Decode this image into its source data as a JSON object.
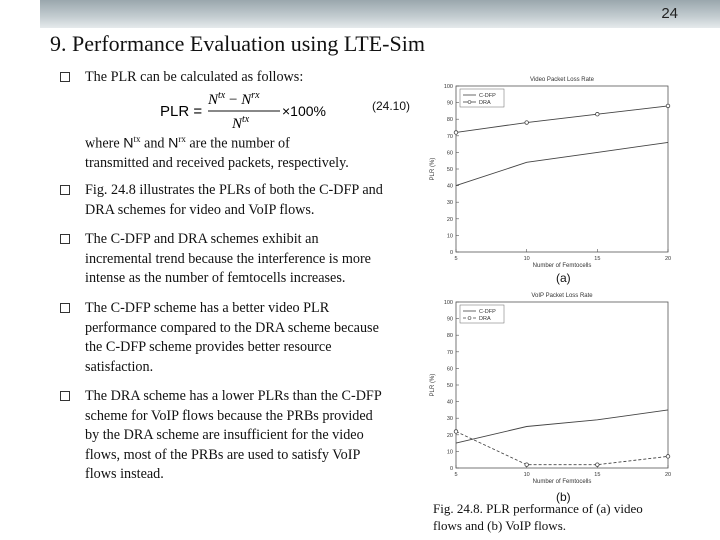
{
  "slide_number": "24",
  "title": "9. Performance Evaluation using LTE-Sim",
  "formula": {
    "lhs": "PLR =",
    "num_base1": "N",
    "num_sup1": "tx",
    "num_minus": " − ",
    "num_base2": "N",
    "num_sup2": "rx",
    "den_base": "N",
    "den_sup": "tx",
    "factor": "×100%",
    "tag": "(24.10)"
  },
  "bullets": [
    {
      "lines": [
        "The PLR can be calculated as follows:"
      ]
    },
    {
      "lines": [
        "Fig. 24.8 illustrates the PLRs of both the C-DFP and",
        "DRA schemes for video and VoIP flows."
      ]
    },
    {
      "lines": [
        "The C-DFP and DRA schemes exhibit an",
        "incremental trend because the interference is more",
        "intense as the number of femtocells increases."
      ]
    },
    {
      "lines": [
        "The C-DFP scheme has a better video PLR",
        "performance compared to the DRA scheme because",
        "the C-DFP scheme provides better resource",
        "satisfaction."
      ]
    },
    {
      "lines": [
        "The DRA scheme has a lower PLRs than the C-DFP",
        "scheme for VoIP flows because the PRBs provided",
        "by the DRA scheme are insufficient for the video",
        "flows, most of the PRBs are used to satisfy VoIP",
        "flows instead."
      ]
    }
  ],
  "where_text": {
    "w1": "where ",
    "n1": "N",
    "s1": "tx",
    "w2": " and ",
    "n2": "N",
    "s2": "rx",
    "w3": " are the number of",
    "line2": "transmitted and received packets, respectively."
  },
  "caption": {
    "line1": "Fig. 24.8. PLR performance of (a) video",
    "line2": "flows and (b) VoIP flows."
  },
  "chart_data": [
    {
      "type": "line",
      "panel_label": "(a)",
      "title": "Video Packet Loss Rate",
      "xlabel": "Number of Femtocells",
      "ylabel": "PLR (%)",
      "x": [
        5,
        10,
        15,
        20
      ],
      "xticks": [
        "5",
        "10",
        "15",
        "20"
      ],
      "yticks": [
        "0",
        "10",
        "20",
        "30",
        "40",
        "50",
        "60",
        "70",
        "80",
        "90",
        "100"
      ],
      "xlim": [
        5,
        20
      ],
      "ylim": [
        0,
        100
      ],
      "grid": false,
      "legend": "top-left",
      "series": [
        {
          "name": "C-DFP",
          "values": [
            40,
            54,
            60,
            66
          ],
          "color": "#444444",
          "marker": "none"
        },
        {
          "name": "DRA",
          "values": [
            72,
            78,
            83,
            88
          ],
          "color": "#444444",
          "marker": "circle"
        }
      ]
    },
    {
      "type": "line",
      "panel_label": "(b)",
      "title": "VoIP Packet Loss Rate",
      "xlabel": "Number of Femtocells",
      "ylabel": "PLR (%)",
      "x": [
        5,
        10,
        15,
        20
      ],
      "xticks": [
        "5",
        "10",
        "15",
        "20"
      ],
      "yticks": [
        "0",
        "10",
        "20",
        "30",
        "40",
        "50",
        "60",
        "70",
        "80",
        "90",
        "100"
      ],
      "xlim": [
        5,
        20
      ],
      "ylim": [
        0,
        100
      ],
      "grid": false,
      "legend": "top-left",
      "series": [
        {
          "name": "C-DFP",
          "values": [
            15,
            25,
            29,
            35
          ],
          "color": "#444444",
          "marker": "none"
        },
        {
          "name": "DRA",
          "values": [
            22,
            2,
            2,
            7
          ],
          "color": "#444444",
          "marker": "circle",
          "dash": true
        }
      ]
    }
  ]
}
